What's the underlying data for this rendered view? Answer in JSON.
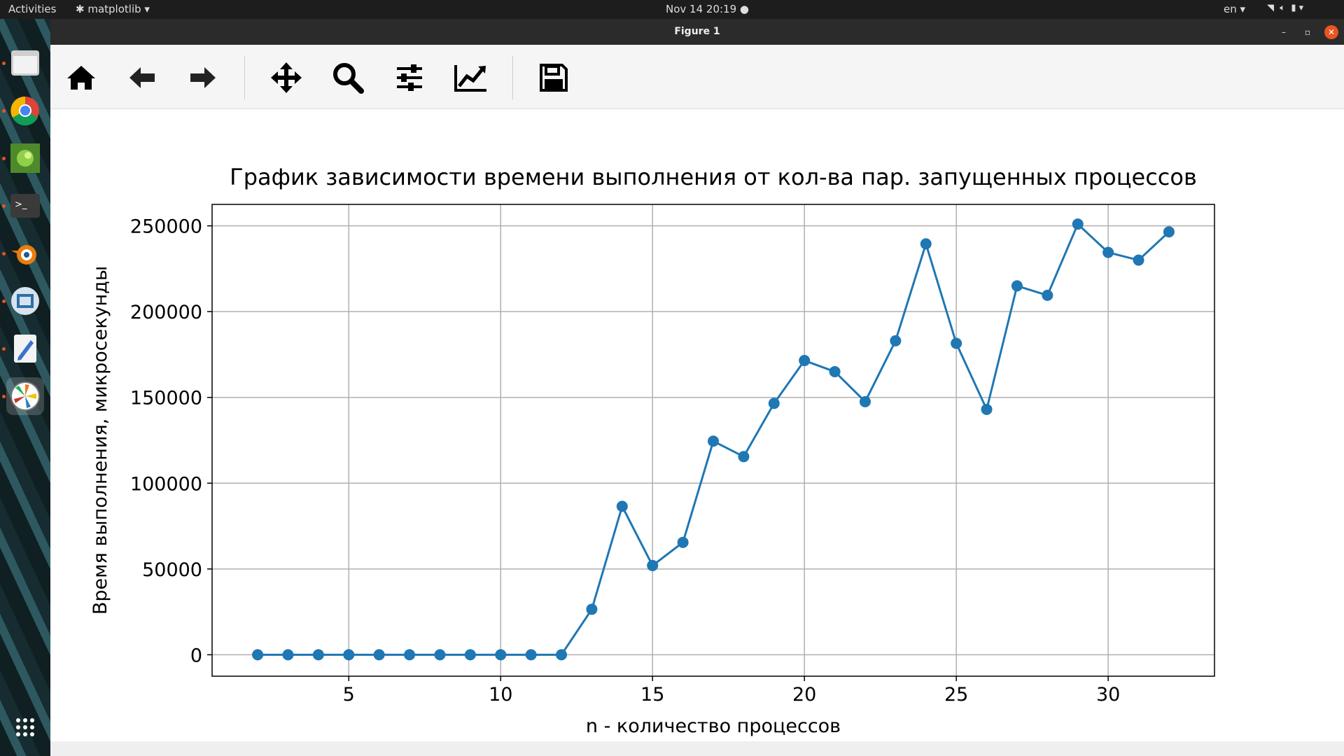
{
  "topbar": {
    "activities": "Activities",
    "app_menu": "matplotlib",
    "clock": "Nov 14  20:19",
    "lang": "en"
  },
  "dock": {
    "items": [
      {
        "name": "files-icon",
        "active": false
      },
      {
        "name": "chrome-icon",
        "active": false
      },
      {
        "name": "image-viewer-icon",
        "active": false
      },
      {
        "name": "terminal-icon",
        "active": false
      },
      {
        "name": "blender-icon",
        "active": false
      },
      {
        "name": "vscode-icon",
        "active": false
      },
      {
        "name": "text-editor-icon",
        "active": false
      },
      {
        "name": "matplotlib-icon",
        "active": true
      }
    ],
    "apps_grid": "show-applications-icon"
  },
  "window": {
    "title": "Figure 1",
    "controls": [
      "minimize",
      "maximize",
      "close"
    ]
  },
  "toolbar": {
    "tools": [
      "home-icon",
      "back-icon",
      "forward-icon",
      "pan-icon",
      "zoom-icon",
      "configure-subplots-icon",
      "edit-axes-icon",
      "save-icon"
    ]
  },
  "colors": {
    "series": "#1f77b4",
    "accent": "#e95420"
  },
  "chart_data": {
    "type": "line",
    "title": "График зависимости времени выполнения от кол-ва пар. запущенных процессов",
    "xlabel": "n - количество процессов",
    "ylabel": "Время выполнения, микросекунды",
    "xlim": [
      0.5,
      33.5
    ],
    "ylim": [
      -12500,
      262500
    ],
    "xticks": [
      5,
      10,
      15,
      20,
      25,
      30
    ],
    "yticks": [
      0,
      50000,
      100000,
      150000,
      200000,
      250000
    ],
    "grid": true,
    "marker": "circle",
    "x": [
      2,
      3,
      4,
      5,
      6,
      7,
      8,
      9,
      10,
      11,
      12,
      13,
      14,
      15,
      16,
      17,
      18,
      19,
      20,
      21,
      22,
      23,
      24,
      25,
      26,
      27,
      28,
      29,
      30,
      31,
      32
    ],
    "y": [
      0,
      0,
      0,
      0,
      0,
      0,
      0,
      0,
      0,
      0,
      0,
      26500,
      86500,
      52000,
      65500,
      124500,
      115500,
      146500,
      171500,
      165000,
      147500,
      183000,
      239500,
      181500,
      143000,
      215000,
      209500,
      251000,
      234500,
      230000,
      246500
    ]
  }
}
